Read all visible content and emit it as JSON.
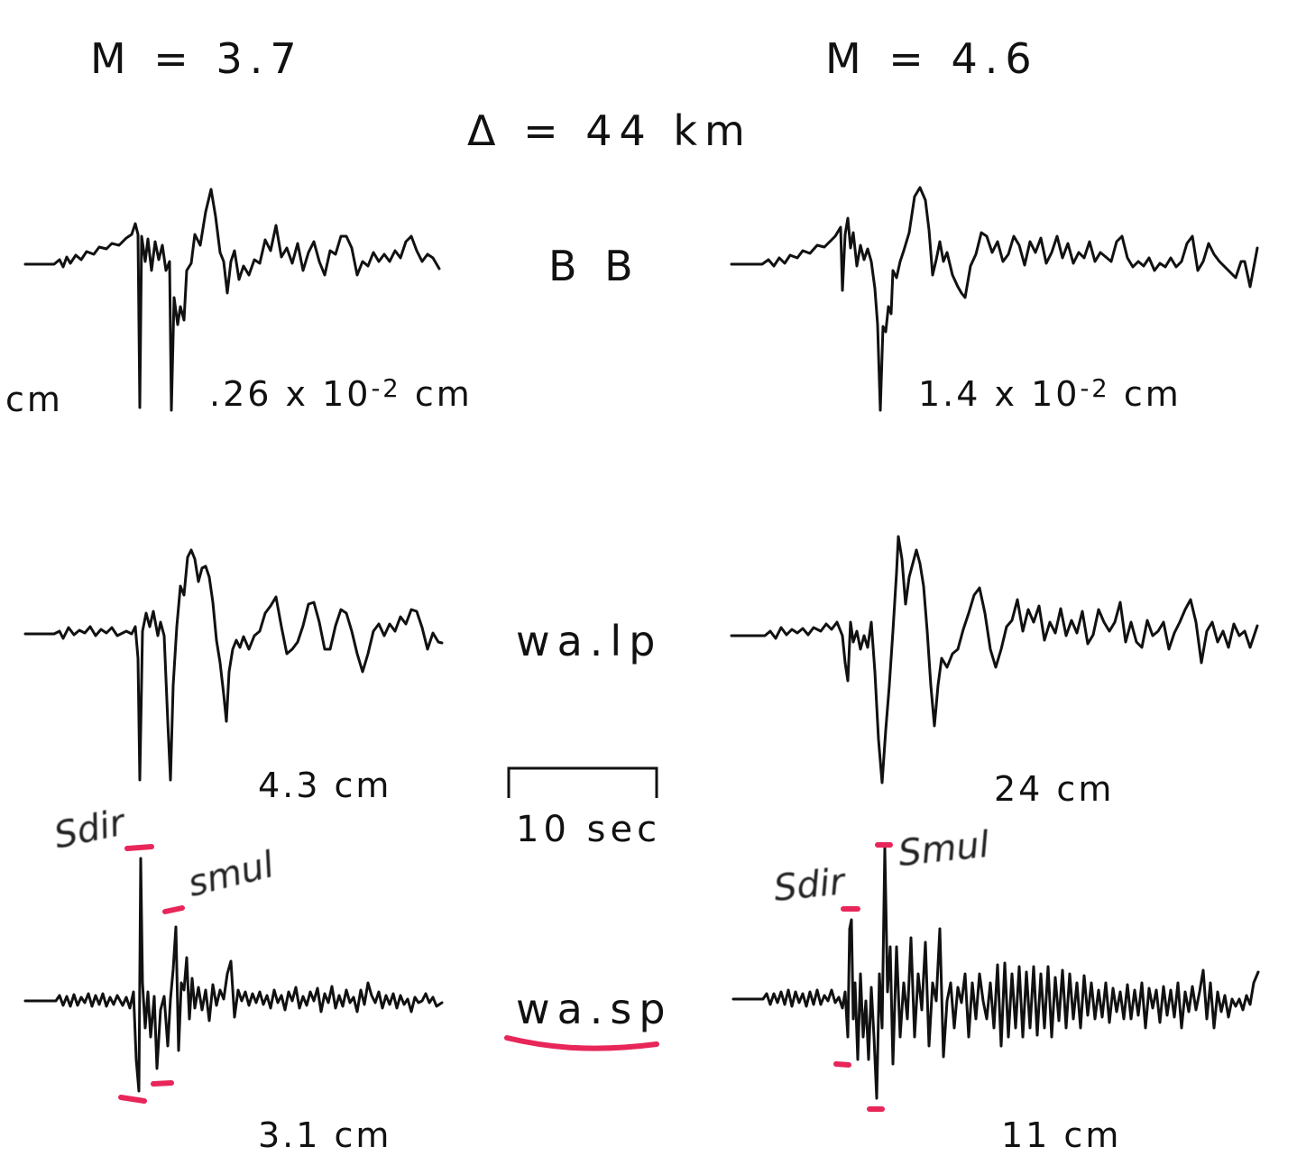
{
  "header": {
    "left_magnitude": "M = 3.7",
    "right_magnitude": "M = 4.6",
    "distance": "Δ = 44 km"
  },
  "rows": [
    {
      "id": "bb",
      "instrument_label": "B B",
      "left_amplitude_prefix": ".26 x 10",
      "left_amplitude_exp": "-2",
      "left_amplitude_unit": "cm",
      "left_edge_unit": "cm",
      "right_amplitude_prefix": "1.4 x 10",
      "right_amplitude_exp": "-2",
      "right_amplitude_unit": "cm"
    },
    {
      "id": "walp",
      "instrument_label": "wa.lp",
      "left_amplitude": "4.3 cm",
      "right_amplitude": "24 cm"
    },
    {
      "id": "wasp",
      "instrument_label": "wa.sp",
      "left_amplitude": "3.1 cm",
      "right_amplitude": "11 cm"
    }
  ],
  "time_scale": {
    "label": "10 sec"
  },
  "annotations": {
    "left_sdir": "Sdir",
    "left_smul": "smul",
    "right_sdir": "Sdir",
    "right_smul": "Smul",
    "highlight_color": "#e8265a"
  }
}
